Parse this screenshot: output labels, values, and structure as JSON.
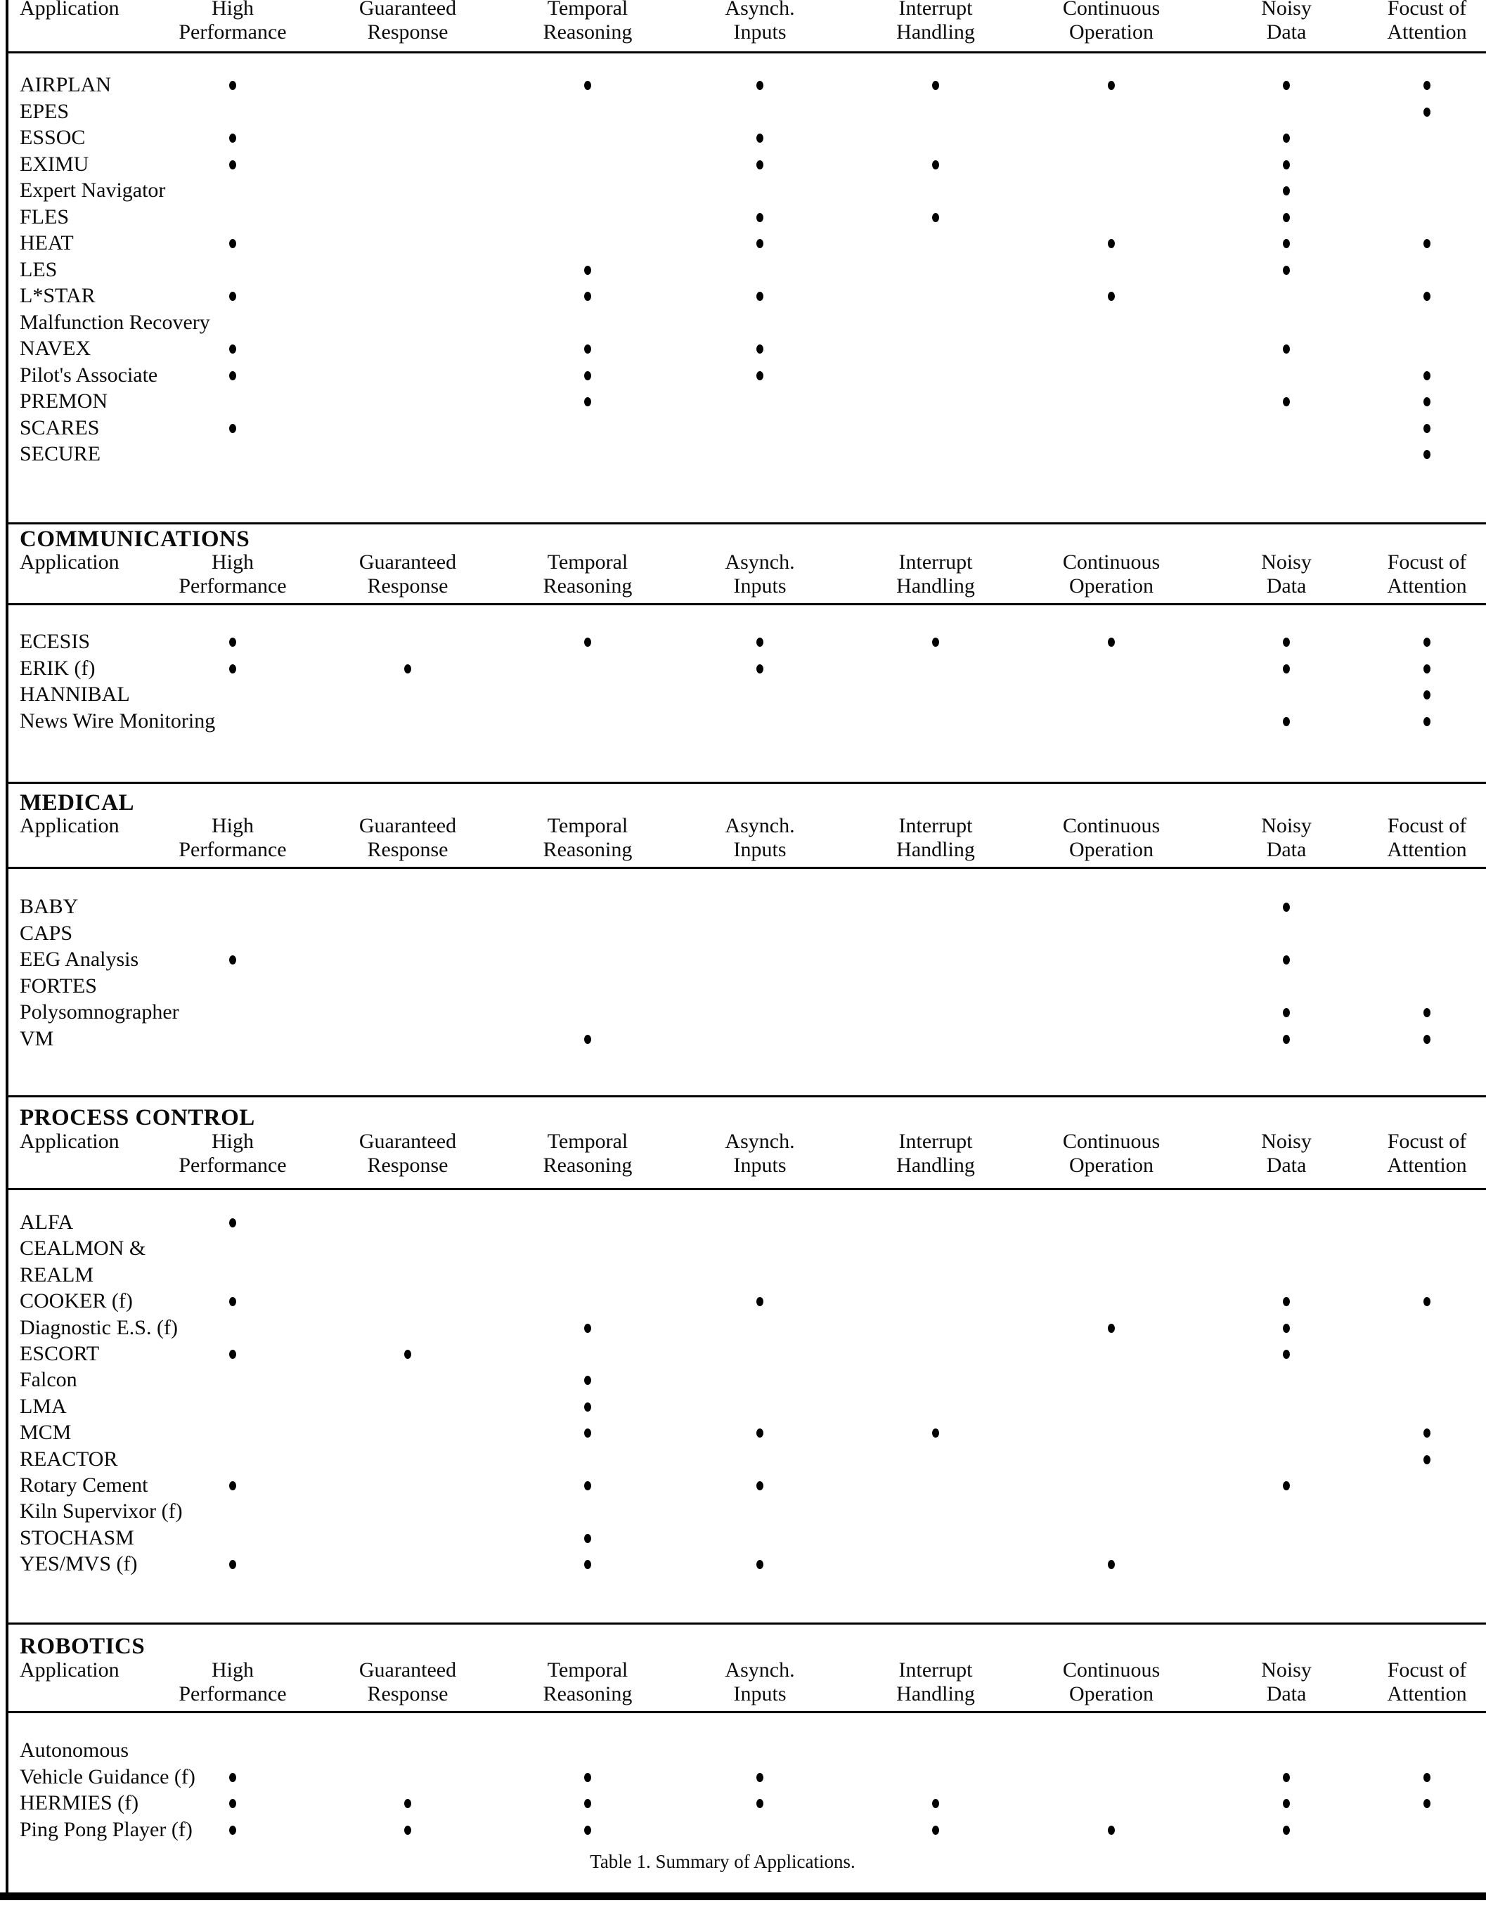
{
  "table": {
    "application_column_header": "Application",
    "columns": [
      {
        "id": "high-performance",
        "line1": "High",
        "line2": "Performance"
      },
      {
        "id": "guaranteed-response",
        "line1": "Guaranteed",
        "line2": "Response"
      },
      {
        "id": "temporal-reasoning",
        "line1": "Temporal",
        "line2": "Reasoning"
      },
      {
        "id": "asynch-inputs",
        "line1": "Asynch.",
        "line2": "Inputs"
      },
      {
        "id": "interrupt-handling",
        "line1": "Interrupt",
        "line2": "Handling"
      },
      {
        "id": "continuous-operation",
        "line1": "Continuous",
        "line2": "Operation"
      },
      {
        "id": "noisy-data",
        "line1": "Noisy",
        "line2": "Data"
      },
      {
        "id": "focust-of-attention",
        "line1": "Focust of",
        "line2": "Attention"
      }
    ],
    "sections": [
      {
        "title": "",
        "rows": [
          {
            "name": "AIRPLAN",
            "dots": [
              1,
              0,
              1,
              1,
              1,
              1,
              1,
              1
            ]
          },
          {
            "name": "EPES",
            "dots": [
              0,
              0,
              0,
              0,
              0,
              0,
              0,
              1
            ]
          },
          {
            "name": "ESSOC",
            "dots": [
              1,
              0,
              0,
              1,
              0,
              0,
              1,
              0
            ]
          },
          {
            "name": "EXIMU",
            "dots": [
              1,
              0,
              0,
              1,
              1,
              0,
              1,
              0
            ]
          },
          {
            "name": "Expert Navigator",
            "dots": [
              0,
              0,
              0,
              0,
              0,
              0,
              1,
              0
            ]
          },
          {
            "name": "FLES",
            "dots": [
              0,
              0,
              0,
              1,
              1,
              0,
              1,
              0
            ]
          },
          {
            "name": "HEAT",
            "dots": [
              1,
              0,
              0,
              1,
              0,
              1,
              1,
              1
            ]
          },
          {
            "name": "LES",
            "dots": [
              0,
              0,
              1,
              0,
              0,
              0,
              1,
              0
            ]
          },
          {
            "name": "L*STAR",
            "dots": [
              1,
              0,
              1,
              1,
              0,
              1,
              0,
              1
            ]
          },
          {
            "name": "Malfunction Recovery",
            "dots": [
              0,
              0,
              0,
              0,
              0,
              0,
              0,
              0
            ]
          },
          {
            "name": "NAVEX",
            "dots": [
              1,
              0,
              1,
              1,
              0,
              0,
              1,
              0
            ]
          },
          {
            "name": "Pilot's Associate",
            "dots": [
              1,
              0,
              1,
              1,
              0,
              0,
              0,
              1
            ]
          },
          {
            "name": "PREMON",
            "dots": [
              0,
              0,
              1,
              0,
              0,
              0,
              1,
              1
            ]
          },
          {
            "name": "SCARES",
            "dots": [
              1,
              0,
              0,
              0,
              0,
              0,
              0,
              1
            ]
          },
          {
            "name": "SECURE",
            "dots": [
              0,
              0,
              0,
              0,
              0,
              0,
              0,
              1
            ]
          }
        ]
      },
      {
        "title": "COMMUNICATIONS",
        "rows": [
          {
            "name": "ECESIS",
            "dots": [
              1,
              0,
              1,
              1,
              1,
              1,
              1,
              1
            ]
          },
          {
            "name": "ERIK (f)",
            "dots": [
              1,
              1,
              0,
              1,
              0,
              0,
              1,
              1
            ]
          },
          {
            "name": "HANNIBAL",
            "dots": [
              0,
              0,
              0,
              0,
              0,
              0,
              0,
              1
            ]
          },
          {
            "name": "News Wire Monitoring",
            "dots": [
              0,
              0,
              0,
              0,
              0,
              0,
              1,
              1
            ]
          }
        ]
      },
      {
        "title": "MEDICAL",
        "rows": [
          {
            "name": "BABY",
            "dots": [
              0,
              0,
              0,
              0,
              0,
              0,
              1,
              0
            ]
          },
          {
            "name": "CAPS",
            "dots": [
              0,
              0,
              0,
              0,
              0,
              0,
              0,
              0
            ]
          },
          {
            "name": "EEG Analysis",
            "dots": [
              1,
              0,
              0,
              0,
              0,
              0,
              1,
              0
            ]
          },
          {
            "name": "FORTES",
            "dots": [
              0,
              0,
              0,
              0,
              0,
              0,
              0,
              0
            ]
          },
          {
            "name": "Polysomnographer",
            "dots": [
              0,
              0,
              0,
              0,
              0,
              0,
              1,
              1
            ]
          },
          {
            "name": "VM",
            "dots": [
              0,
              0,
              1,
              0,
              0,
              0,
              1,
              1
            ]
          }
        ]
      },
      {
        "title": "PROCESS CONTROL",
        "rows": [
          {
            "name": "ALFA",
            "dots": [
              1,
              0,
              0,
              0,
              0,
              0,
              0,
              0
            ]
          },
          {
            "name": "CEALMON &",
            "dots": [
              0,
              0,
              0,
              0,
              0,
              0,
              0,
              0
            ]
          },
          {
            "name": "REALM",
            "dots": [
              0,
              0,
              0,
              0,
              0,
              0,
              0,
              0
            ]
          },
          {
            "name": "COOKER (f)",
            "dots": [
              1,
              0,
              0,
              1,
              0,
              0,
              1,
              1
            ]
          },
          {
            "name": "Diagnostic E.S. (f)",
            "dots": [
              0,
              0,
              1,
              0,
              0,
              1,
              1,
              0
            ]
          },
          {
            "name": "ESCORT",
            "dots": [
              1,
              1,
              0,
              0,
              0,
              0,
              1,
              0
            ]
          },
          {
            "name": "Falcon",
            "dots": [
              0,
              0,
              1,
              0,
              0,
              0,
              0,
              0
            ]
          },
          {
            "name": "LMA",
            "dots": [
              0,
              0,
              1,
              0,
              0,
              0,
              0,
              0
            ]
          },
          {
            "name": "MCM",
            "dots": [
              0,
              0,
              1,
              1,
              1,
              0,
              0,
              1
            ]
          },
          {
            "name": "REACTOR",
            "dots": [
              0,
              0,
              0,
              0,
              0,
              0,
              0,
              1
            ]
          },
          {
            "name": "Rotary Cement",
            "dots": [
              1,
              0,
              1,
              1,
              0,
              0,
              1,
              0
            ]
          },
          {
            "name": "Kiln Supervixor (f)",
            "dots": [
              0,
              0,
              0,
              0,
              0,
              0,
              0,
              0
            ]
          },
          {
            "name": "STOCHASM",
            "dots": [
              0,
              0,
              1,
              0,
              0,
              0,
              0,
              0
            ]
          },
          {
            "name": "YES/MVS (f)",
            "dots": [
              1,
              0,
              1,
              1,
              0,
              1,
              0,
              0
            ]
          }
        ]
      },
      {
        "title": "ROBOTICS",
        "rows": [
          {
            "name": "Autonomous",
            "dots": [
              0,
              0,
              0,
              0,
              0,
              0,
              0,
              0
            ]
          },
          {
            "name": "Vehicle Guidance (f)",
            "dots": [
              1,
              0,
              1,
              1,
              0,
              0,
              1,
              1
            ]
          },
          {
            "name": "HERMIES (f)",
            "dots": [
              1,
              1,
              1,
              1,
              1,
              0,
              1,
              1
            ]
          },
          {
            "name": "Ping Pong Player (f)",
            "dots": [
              1,
              1,
              1,
              0,
              1,
              1,
              1,
              0
            ]
          }
        ]
      }
    ],
    "caption": "Table 1. Summary of Applications.",
    "dot_symbol": "•",
    "colors": {
      "ink": "#000000",
      "paper": "#ffffff"
    }
  }
}
